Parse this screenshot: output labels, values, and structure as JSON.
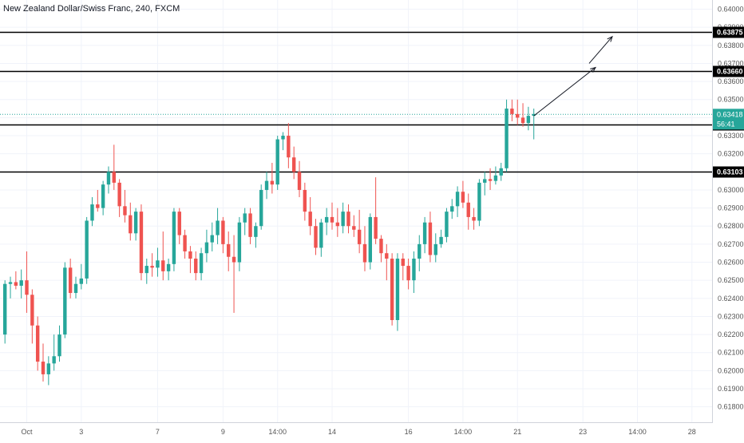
{
  "chart_data": {
    "type": "candlestick",
    "title": "New Zealand Dollar/Swiss Franc, 240, FXCM",
    "ylim": [
      0.6175,
      0.6402
    ],
    "y_ticks": [
      "0.64000",
      "0.63900",
      "0.63800",
      "0.63700",
      "0.63600",
      "0.63500",
      "0.63400",
      "0.63300",
      "0.63200",
      "0.63100",
      "0.63000",
      "0.62900",
      "0.62800",
      "0.62700",
      "0.62600",
      "0.62500",
      "0.62400",
      "0.62300",
      "0.62200",
      "0.62100",
      "0.62000",
      "0.61900",
      "0.61800"
    ],
    "x_ticks": [
      "Oct",
      "3",
      "7",
      "9",
      "14:00",
      "14",
      "16",
      "14:00",
      "21",
      "23",
      "14:00",
      "28"
    ],
    "x_tick_index": [
      4,
      14,
      28,
      40,
      50,
      60,
      74,
      84,
      94,
      106,
      116,
      126
    ],
    "horizontal_levels": [
      "0.63875",
      "0.63660",
      "0.63363",
      "0.63103"
    ],
    "current_price": "0.63418",
    "countdown": "56:41",
    "up_color": "#26a69a",
    "down_color": "#ef5350",
    "candles": [
      [
        0.622,
        0.625,
        0.6215,
        0.6248
      ],
      [
        0.6248,
        0.6252,
        0.624,
        0.6249
      ],
      [
        0.6249,
        0.6255,
        0.6245,
        0.6247
      ],
      [
        0.6247,
        0.6256,
        0.624,
        0.625
      ],
      [
        0.625,
        0.6266,
        0.6232,
        0.6242
      ],
      [
        0.6242,
        0.6245,
        0.6215,
        0.6225
      ],
      [
        0.6225,
        0.623,
        0.62,
        0.6205
      ],
      [
        0.6205,
        0.6215,
        0.6194,
        0.6198
      ],
      [
        0.6198,
        0.6208,
        0.6192,
        0.6204
      ],
      [
        0.6204,
        0.622,
        0.62,
        0.6208
      ],
      [
        0.6208,
        0.6225,
        0.6205,
        0.622
      ],
      [
        0.622,
        0.626,
        0.6218,
        0.6257
      ],
      [
        0.6257,
        0.6262,
        0.624,
        0.6243
      ],
      [
        0.6243,
        0.6252,
        0.624,
        0.6248
      ],
      [
        0.6248,
        0.6259,
        0.6245,
        0.6251
      ],
      [
        0.6251,
        0.6285,
        0.6248,
        0.6283
      ],
      [
        0.6283,
        0.6296,
        0.628,
        0.6292
      ],
      [
        0.6292,
        0.63,
        0.6288,
        0.629
      ],
      [
        0.629,
        0.6305,
        0.6286,
        0.6303
      ],
      [
        0.6303,
        0.6313,
        0.6298,
        0.631
      ],
      [
        0.631,
        0.6325,
        0.63,
        0.6304
      ],
      [
        0.6304,
        0.6306,
        0.6285,
        0.6291
      ],
      [
        0.6291,
        0.63,
        0.6282,
        0.6286
      ],
      [
        0.6286,
        0.6293,
        0.6272,
        0.6276
      ],
      [
        0.6276,
        0.629,
        0.6272,
        0.6288
      ],
      [
        0.6288,
        0.6292,
        0.625,
        0.6254
      ],
      [
        0.6254,
        0.6262,
        0.6248,
        0.6258
      ],
      [
        0.6258,
        0.6265,
        0.6252,
        0.6257
      ],
      [
        0.6257,
        0.6268,
        0.6252,
        0.6261
      ],
      [
        0.6261,
        0.6277,
        0.625,
        0.6255
      ],
      [
        0.6255,
        0.6262,
        0.625,
        0.6259
      ],
      [
        0.6259,
        0.629,
        0.6255,
        0.6288
      ],
      [
        0.6288,
        0.629,
        0.627,
        0.6275
      ],
      [
        0.6275,
        0.6278,
        0.6262,
        0.6266
      ],
      [
        0.6266,
        0.6269,
        0.6254,
        0.6262
      ],
      [
        0.6262,
        0.6266,
        0.625,
        0.6254
      ],
      [
        0.6254,
        0.6268,
        0.625,
        0.6265
      ],
      [
        0.6265,
        0.6278,
        0.626,
        0.6271
      ],
      [
        0.6271,
        0.6282,
        0.6266,
        0.6275
      ],
      [
        0.6275,
        0.629,
        0.627,
        0.6283
      ],
      [
        0.6283,
        0.6285,
        0.6265,
        0.627
      ],
      [
        0.627,
        0.6277,
        0.6255,
        0.6263
      ],
      [
        0.6263,
        0.6275,
        0.6232,
        0.626
      ],
      [
        0.626,
        0.6285,
        0.6255,
        0.6282
      ],
      [
        0.6282,
        0.629,
        0.6275,
        0.6287
      ],
      [
        0.6287,
        0.629,
        0.627,
        0.6274
      ],
      [
        0.6274,
        0.6282,
        0.6268,
        0.628
      ],
      [
        0.628,
        0.6303,
        0.6278,
        0.63
      ],
      [
        0.63,
        0.631,
        0.6295,
        0.6305
      ],
      [
        0.6305,
        0.6315,
        0.6298,
        0.6303
      ],
      [
        0.6303,
        0.633,
        0.63,
        0.6328
      ],
      [
        0.6328,
        0.6332,
        0.6322,
        0.633
      ],
      [
        0.633,
        0.6337,
        0.6312,
        0.6318
      ],
      [
        0.6318,
        0.6324,
        0.6306,
        0.631
      ],
      [
        0.631,
        0.6316,
        0.6296,
        0.63
      ],
      [
        0.63,
        0.6304,
        0.6283,
        0.6288
      ],
      [
        0.6288,
        0.6296,
        0.6275,
        0.628
      ],
      [
        0.628,
        0.6284,
        0.6264,
        0.6268
      ],
      [
        0.6268,
        0.6284,
        0.6263,
        0.6282
      ],
      [
        0.6282,
        0.629,
        0.6275,
        0.6285
      ],
      [
        0.6285,
        0.6293,
        0.6278,
        0.6282
      ],
      [
        0.6282,
        0.629,
        0.6274,
        0.628
      ],
      [
        0.628,
        0.6293,
        0.6276,
        0.6288
      ],
      [
        0.6288,
        0.6292,
        0.6276,
        0.628
      ],
      [
        0.628,
        0.6286,
        0.6274,
        0.6278
      ],
      [
        0.6278,
        0.6289,
        0.6265,
        0.627
      ],
      [
        0.627,
        0.628,
        0.6255,
        0.626
      ],
      [
        0.626,
        0.6287,
        0.6256,
        0.6285
      ],
      [
        0.6285,
        0.6307,
        0.627,
        0.6273
      ],
      [
        0.6273,
        0.6275,
        0.626,
        0.6265
      ],
      [
        0.6265,
        0.627,
        0.625,
        0.6262
      ],
      [
        0.6262,
        0.6265,
        0.6225,
        0.6228
      ],
      [
        0.6228,
        0.6265,
        0.6222,
        0.6262
      ],
      [
        0.6262,
        0.6265,
        0.625,
        0.6258
      ],
      [
        0.6258,
        0.6262,
        0.6245,
        0.625
      ],
      [
        0.625,
        0.6266,
        0.6243,
        0.6262
      ],
      [
        0.6262,
        0.6275,
        0.6255,
        0.627
      ],
      [
        0.627,
        0.6285,
        0.6265,
        0.6282
      ],
      [
        0.6282,
        0.6288,
        0.626,
        0.6264
      ],
      [
        0.6264,
        0.6276,
        0.626,
        0.627
      ],
      [
        0.627,
        0.6278,
        0.6268,
        0.6274
      ],
      [
        0.6274,
        0.629,
        0.6271,
        0.6288
      ],
      [
        0.6288,
        0.6295,
        0.6284,
        0.6291
      ],
      [
        0.6291,
        0.6302,
        0.6285,
        0.6299
      ],
      [
        0.6299,
        0.6305,
        0.629,
        0.6293
      ],
      [
        0.6293,
        0.6298,
        0.6278,
        0.6285
      ],
      [
        0.6285,
        0.629,
        0.6278,
        0.6283
      ],
      [
        0.6283,
        0.6306,
        0.628,
        0.6304
      ],
      [
        0.6304,
        0.631,
        0.6297,
        0.6306
      ],
      [
        0.6306,
        0.6312,
        0.63,
        0.6305
      ],
      [
        0.6305,
        0.6313,
        0.6303,
        0.6308
      ],
      [
        0.6308,
        0.6315,
        0.6305,
        0.6312
      ],
      [
        0.6312,
        0.635,
        0.631,
        0.6345
      ],
      [
        0.6345,
        0.635,
        0.6338,
        0.6342
      ],
      [
        0.6342,
        0.635,
        0.6336,
        0.634
      ],
      [
        0.634,
        0.6348,
        0.6335,
        0.6337
      ],
      [
        0.6337,
        0.6346,
        0.6333,
        0.6341
      ],
      [
        0.6341,
        0.6345,
        0.6328,
        0.6342
      ]
    ]
  }
}
